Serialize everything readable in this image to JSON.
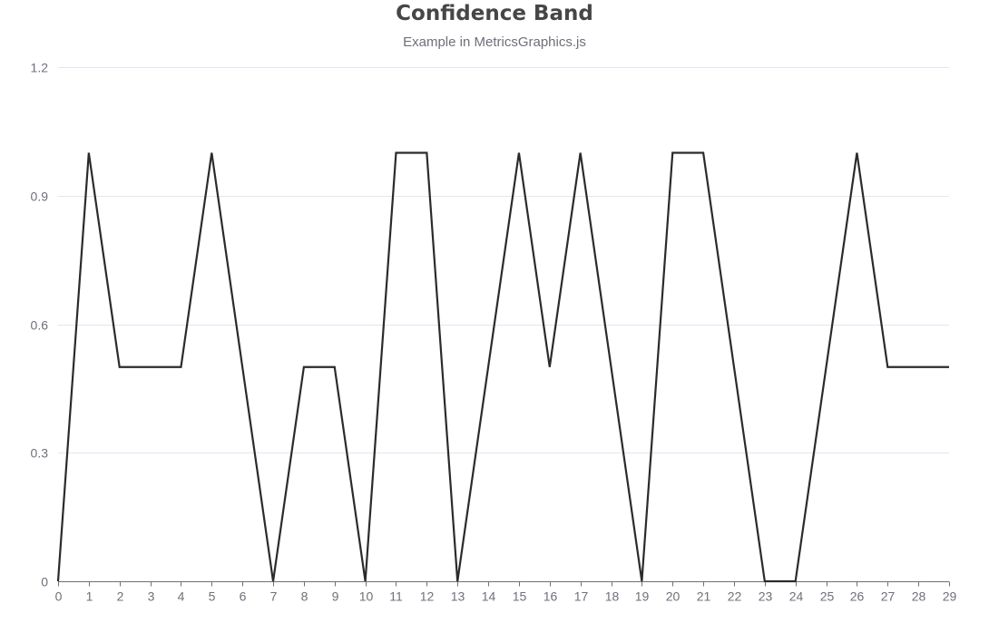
{
  "colors": {
    "line": "#2b2b2b",
    "grid": "#e0e6f1",
    "axis": "#6e7079"
  },
  "chart_data": {
    "type": "line",
    "title": "Confidence Band",
    "subtitle": "Example in MetricsGraphics.js",
    "xlabel": "",
    "ylabel": "",
    "x": [
      0,
      1,
      2,
      3,
      4,
      5,
      6,
      7,
      8,
      9,
      10,
      11,
      12,
      13,
      14,
      15,
      16,
      17,
      18,
      19,
      20,
      21,
      22,
      23,
      24,
      25,
      26,
      27,
      28,
      29
    ],
    "x_tick_labels": [
      "0",
      "1",
      "2",
      "3",
      "4",
      "5",
      "6",
      "7",
      "8",
      "9",
      "10",
      "11",
      "12",
      "13",
      "14",
      "15",
      "16",
      "17",
      "18",
      "19",
      "20",
      "21",
      "22",
      "23",
      "24",
      "25",
      "26",
      "27",
      "28",
      "29"
    ],
    "xlim": [
      0,
      29
    ],
    "ylim": [
      0,
      1.2
    ],
    "y_ticks": [
      0,
      0.3,
      0.6,
      0.9,
      1.2
    ],
    "y_tick_labels": [
      "0",
      "0.3",
      "0.6",
      "0.9",
      "1.2"
    ],
    "grid": true,
    "legend": "none",
    "series": [
      {
        "values": [
          0,
          1,
          0.5,
          0.5,
          0.5,
          1,
          0.5,
          0,
          0.5,
          0.5,
          0,
          1,
          1,
          0,
          0.5,
          1,
          0.5,
          1,
          0.5,
          0,
          1,
          1,
          0.5,
          0,
          0,
          0.5,
          1,
          0.5,
          0.5,
          0.5
        ]
      }
    ]
  }
}
